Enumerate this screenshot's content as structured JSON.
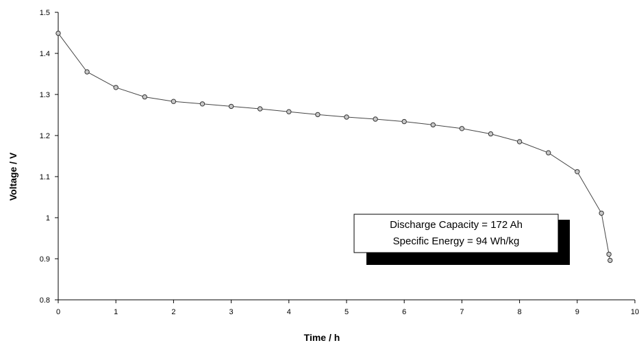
{
  "chart_data": {
    "type": "line",
    "title": "",
    "xlabel": "Time / h",
    "ylabel": "Voltage / V",
    "xlim": [
      0,
      10
    ],
    "ylim": [
      0.8,
      1.5
    ],
    "xticks": [
      "0",
      "1",
      "2",
      "3",
      "4",
      "5",
      "6",
      "7",
      "8",
      "9",
      "10"
    ],
    "yticks": [
      "0.8",
      "0.9",
      "1",
      "1.1",
      "1.2",
      "1.3",
      "1.4",
      "1.5"
    ],
    "grid": false,
    "legend": "none",
    "series": [
      {
        "x": [
          0,
          0.5,
          1,
          1.5,
          2,
          2.5,
          3,
          3.5,
          4,
          4.5,
          5,
          5.5,
          6,
          6.5,
          7,
          7.5,
          8,
          8.5,
          9,
          9.42,
          9.55,
          9.57
        ],
        "y": [
          1.449,
          1.355,
          1.317,
          1.294,
          1.283,
          1.277,
          1.271,
          1.265,
          1.258,
          1.251,
          1.245,
          1.24,
          1.234,
          1.226,
          1.217,
          1.204,
          1.185,
          1.158,
          1.112,
          1.011,
          0.911,
          0.896
        ]
      }
    ],
    "annotation": {
      "lines": [
        "Discharge Capacity = 172 Ah",
        "Specific Energy = 94 Wh/kg"
      ]
    },
    "colors": {
      "line": "#444444",
      "marker_fill": "#c8c8c8",
      "marker_stroke": "#333333",
      "shadow": "#000000"
    }
  }
}
